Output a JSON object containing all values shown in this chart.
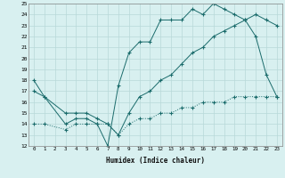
{
  "line1_x": [
    0,
    1,
    3,
    4,
    5,
    6,
    7,
    8,
    9,
    10,
    11,
    12,
    13,
    14,
    15,
    16,
    17,
    18,
    19,
    20,
    21,
    22,
    23
  ],
  "line1_y": [
    18,
    16.5,
    14,
    14.5,
    14.5,
    14,
    12,
    17.5,
    20.5,
    21.5,
    21.5,
    23.5,
    23.5,
    23.5,
    24.5,
    24,
    25,
    24.5,
    24,
    23.5,
    22,
    18.5,
    16.5
  ],
  "line2_x": [
    0,
    1,
    3,
    4,
    5,
    6,
    7,
    8,
    9,
    10,
    11,
    12,
    13,
    14,
    15,
    16,
    17,
    18,
    19,
    20,
    21,
    22,
    23
  ],
  "line2_y": [
    17,
    16.5,
    15,
    15,
    15,
    14.5,
    14,
    13,
    15,
    16.5,
    17,
    18,
    18.5,
    19.5,
    20.5,
    21,
    22,
    22.5,
    23,
    23.5,
    24,
    23.5,
    23
  ],
  "line3_x": [
    0,
    1,
    3,
    4,
    5,
    6,
    7,
    8,
    9,
    10,
    11,
    12,
    13,
    14,
    15,
    16,
    17,
    18,
    19,
    20,
    21,
    22,
    23
  ],
  "line3_y": [
    14,
    14,
    13.5,
    14,
    14,
    14,
    14,
    13,
    14,
    14.5,
    14.5,
    15,
    15,
    15.5,
    15.5,
    16,
    16,
    16,
    16.5,
    16.5,
    16.5,
    16.5,
    16.5
  ],
  "color": "#1a6b6b",
  "bg_color": "#d8f0f0",
  "grid_color": "#b8d8d8",
  "xlabel": "Humidex (Indice chaleur)",
  "ylim": [
    12,
    25
  ],
  "xlim": [
    -0.5,
    23.5
  ],
  "yticks": [
    12,
    13,
    14,
    15,
    16,
    17,
    18,
    19,
    20,
    21,
    22,
    23,
    24,
    25
  ],
  "xticks": [
    0,
    1,
    2,
    3,
    4,
    5,
    6,
    7,
    8,
    9,
    10,
    11,
    12,
    13,
    14,
    15,
    16,
    17,
    18,
    19,
    20,
    21,
    22,
    23
  ]
}
